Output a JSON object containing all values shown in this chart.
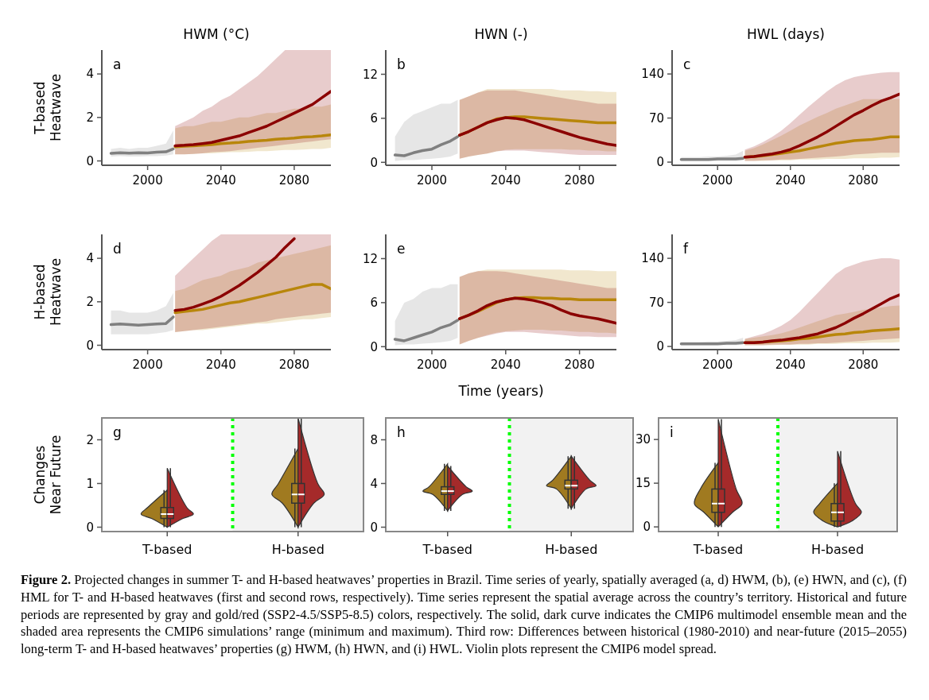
{
  "chart_data": [
    {
      "type": "line",
      "title": "HWM (°C)",
      "ylabel": "T-based Heatwave",
      "annotations": [
        "a"
      ],
      "xlim": [
        1975,
        2100
      ],
      "xticks": [
        2000,
        2040,
        2080
      ],
      "ylim": [
        -0.2,
        5.1
      ],
      "yticks": [
        0,
        2,
        4
      ],
      "series": [
        {
          "color": "#808080",
          "x": [
            1980,
            1985,
            1990,
            1995,
            2000,
            2005,
            2010,
            2014
          ],
          "values": [
            0.35,
            0.38,
            0.36,
            0.38,
            0.37,
            0.4,
            0.42,
            0.55
          ],
          "lower": [
            0.2,
            0.22,
            0.2,
            0.2,
            0.22,
            0.22,
            0.25,
            0.3
          ],
          "upper": [
            0.55,
            0.6,
            0.55,
            0.6,
            0.6,
            0.7,
            0.8,
            1.4
          ]
        },
        {
          "color": "#b8860b",
          "x": [
            2015,
            2020,
            2025,
            2030,
            2035,
            2040,
            2045,
            2050,
            2055,
            2060,
            2065,
            2070,
            2075,
            2080,
            2085,
            2090,
            2095,
            2100
          ],
          "values": [
            0.65,
            0.68,
            0.7,
            0.72,
            0.75,
            0.8,
            0.82,
            0.85,
            0.9,
            0.92,
            0.95,
            1.0,
            1.02,
            1.05,
            1.1,
            1.12,
            1.15,
            1.2
          ],
          "lower": [
            0.3,
            0.3,
            0.32,
            0.35,
            0.35,
            0.38,
            0.4,
            0.4,
            0.42,
            0.45,
            0.45,
            0.48,
            0.5,
            0.5,
            0.52,
            0.55,
            0.55,
            0.6
          ],
          "upper": [
            1.5,
            1.6,
            1.6,
            1.7,
            1.8,
            1.8,
            1.9,
            2.0,
            2.0,
            2.1,
            2.2,
            2.2,
            2.3,
            2.4,
            2.4,
            2.5,
            2.5,
            2.6
          ]
        },
        {
          "color": "#8b0000",
          "x": [
            2015,
            2020,
            2025,
            2030,
            2035,
            2040,
            2045,
            2050,
            2055,
            2060,
            2065,
            2070,
            2075,
            2080,
            2085,
            2090,
            2095,
            2100
          ],
          "values": [
            0.7,
            0.72,
            0.75,
            0.8,
            0.85,
            0.95,
            1.05,
            1.15,
            1.3,
            1.45,
            1.6,
            1.8,
            2.0,
            2.2,
            2.4,
            2.6,
            2.9,
            3.2
          ],
          "lower": [
            0.3,
            0.3,
            0.32,
            0.35,
            0.4,
            0.42,
            0.45,
            0.5,
            0.55,
            0.6,
            0.65,
            0.7,
            0.75,
            0.8,
            0.85,
            0.9,
            0.95,
            1.0
          ],
          "upper": [
            1.6,
            1.8,
            2.0,
            2.3,
            2.5,
            2.8,
            3.0,
            3.3,
            3.6,
            3.9,
            4.3,
            4.7,
            5.1,
            5.1,
            5.1,
            5.1,
            5.1,
            5.1
          ]
        }
      ]
    },
    {
      "type": "line",
      "title": "HWN (-)",
      "annotations": [
        "b"
      ],
      "xlim": [
        1975,
        2100
      ],
      "xticks": [
        2000,
        2040,
        2080
      ],
      "ylim": [
        -0.4,
        15.3
      ],
      "yticks": [
        0,
        6,
        12
      ],
      "series": [
        {
          "color": "#808080",
          "x": [
            1980,
            1985,
            1990,
            1995,
            2000,
            2005,
            2010,
            2014
          ],
          "values": [
            1.0,
            0.9,
            1.3,
            1.6,
            1.8,
            2.4,
            2.9,
            3.5
          ],
          "lower": [
            0.2,
            0.3,
            0.3,
            0.4,
            0.5,
            0.6,
            0.8,
            1.2
          ],
          "upper": [
            3.5,
            5.5,
            6.5,
            7,
            7.5,
            8,
            8,
            8.5
          ]
        },
        {
          "color": "#b8860b",
          "x": [
            2015,
            2020,
            2025,
            2030,
            2035,
            2040,
            2045,
            2050,
            2055,
            2060,
            2065,
            2070,
            2075,
            2080,
            2085,
            2090,
            2095,
            2100
          ],
          "values": [
            3.7,
            4.2,
            4.8,
            5.4,
            5.9,
            6.1,
            6.2,
            6.2,
            6.1,
            6.0,
            5.9,
            5.8,
            5.7,
            5.6,
            5.5,
            5.4,
            5.4,
            5.4
          ],
          "lower": [
            0.5,
            0.8,
            1.0,
            1.2,
            1.5,
            1.7,
            1.8,
            1.8,
            1.8,
            1.8,
            1.8,
            1.8,
            1.7,
            1.7,
            1.6,
            1.6,
            1.5,
            1.5
          ],
          "upper": [
            8.5,
            9,
            9.5,
            10,
            10,
            10,
            10,
            10,
            10,
            10,
            10,
            9.8,
            9.8,
            9.8,
            9.7,
            9.7,
            9.6,
            9.6
          ]
        },
        {
          "color": "#8b0000",
          "x": [
            2015,
            2020,
            2025,
            2030,
            2035,
            2040,
            2045,
            2050,
            2055,
            2060,
            2065,
            2070,
            2075,
            2080,
            2085,
            2090,
            2095,
            2100
          ],
          "values": [
            3.7,
            4.2,
            4.8,
            5.4,
            5.8,
            6.1,
            6.0,
            5.8,
            5.4,
            5.0,
            4.6,
            4.2,
            3.8,
            3.4,
            3.1,
            2.8,
            2.5,
            2.3
          ],
          "lower": [
            0.5,
            0.8,
            1.0,
            1.2,
            1.5,
            1.6,
            1.6,
            1.6,
            1.5,
            1.4,
            1.3,
            1.2,
            1.1,
            1.0,
            1.0,
            1.0,
            1.0,
            1.0
          ],
          "upper": [
            8.5,
            9,
            9.5,
            9.8,
            9.8,
            9.8,
            9.8,
            9.6,
            9.4,
            9.2,
            9,
            8.8,
            8.6,
            8.4,
            8.2,
            8,
            8,
            8
          ]
        }
      ]
    },
    {
      "type": "line",
      "title": "HWL (days)",
      "annotations": [
        "c"
      ],
      "xlim": [
        1975,
        2100
      ],
      "xticks": [
        2000,
        2040,
        2080
      ],
      "ylim": [
        -5,
        178
      ],
      "yticks": [
        0,
        70,
        140
      ],
      "series": [
        {
          "color": "#808080",
          "x": [
            1980,
            1985,
            1990,
            1995,
            2000,
            2005,
            2010,
            2014
          ],
          "values": [
            4,
            4,
            4,
            4,
            5,
            5,
            5,
            6
          ],
          "lower": [
            2,
            2,
            2,
            2,
            2,
            2,
            2,
            3
          ],
          "upper": [
            8,
            8,
            8,
            9,
            9,
            10,
            12,
            18
          ]
        },
        {
          "color": "#b8860b",
          "x": [
            2015,
            2020,
            2025,
            2030,
            2035,
            2040,
            2045,
            2050,
            2055,
            2060,
            2065,
            2070,
            2075,
            2080,
            2085,
            2090,
            2095,
            2100
          ],
          "values": [
            8,
            9,
            10,
            12,
            14,
            16,
            18,
            21,
            24,
            27,
            30,
            32,
            34,
            35,
            36,
            38,
            40,
            40
          ],
          "lower": [
            2,
            2,
            2,
            3,
            3,
            3,
            4,
            4,
            4,
            5,
            5,
            5,
            6,
            6,
            6,
            7,
            7,
            8
          ],
          "upper": [
            18,
            22,
            28,
            35,
            42,
            50,
            58,
            65,
            72,
            78,
            85,
            90,
            95,
            100,
            100,
            100,
            100,
            100
          ]
        },
        {
          "color": "#8b0000",
          "x": [
            2015,
            2020,
            2025,
            2030,
            2035,
            2040,
            2045,
            2050,
            2055,
            2060,
            2065,
            2070,
            2075,
            2080,
            2085,
            2090,
            2095,
            2100
          ],
          "values": [
            8,
            9,
            11,
            13,
            16,
            20,
            26,
            33,
            40,
            48,
            57,
            66,
            75,
            82,
            90,
            97,
            102,
            108
          ],
          "lower": [
            2,
            2,
            3,
            3,
            4,
            4,
            5,
            6,
            7,
            8,
            9,
            10,
            12,
            13,
            14,
            15,
            15,
            15
          ],
          "upper": [
            20,
            25,
            32,
            40,
            50,
            62,
            75,
            88,
            100,
            112,
            122,
            130,
            135,
            138,
            140,
            142,
            143,
            143
          ]
        }
      ]
    },
    {
      "type": "line",
      "ylabel": "H-based Heatwave",
      "annotations": [
        "d"
      ],
      "xlim": [
        1975,
        2100
      ],
      "xticks": [
        2000,
        2040,
        2080
      ],
      "ylim": [
        -0.2,
        5.1
      ],
      "yticks": [
        0,
        2,
        4
      ],
      "series": [
        {
          "color": "#808080",
          "x": [
            1980,
            1985,
            1990,
            1995,
            2000,
            2005,
            2010,
            2014
          ],
          "values": [
            0.95,
            0.98,
            0.95,
            0.92,
            0.95,
            0.98,
            1.0,
            1.3
          ],
          "lower": [
            0.5,
            0.5,
            0.5,
            0.5,
            0.5,
            0.55,
            0.6,
            0.7
          ],
          "upper": [
            1.6,
            1.6,
            1.5,
            1.5,
            1.5,
            1.6,
            1.8,
            2.4
          ]
        },
        {
          "color": "#b8860b",
          "x": [
            2015,
            2020,
            2025,
            2030,
            2035,
            2040,
            2045,
            2050,
            2055,
            2060,
            2065,
            2070,
            2075,
            2080,
            2085,
            2090,
            2095,
            2100
          ],
          "values": [
            1.5,
            1.55,
            1.6,
            1.65,
            1.75,
            1.85,
            1.95,
            2.0,
            2.1,
            2.2,
            2.3,
            2.4,
            2.5,
            2.6,
            2.7,
            2.8,
            2.8,
            2.6
          ],
          "lower": [
            0.6,
            0.65,
            0.7,
            0.7,
            0.75,
            0.8,
            0.85,
            0.9,
            0.95,
            1.0,
            1.0,
            1.05,
            1.1,
            1.15,
            1.2,
            1.2,
            1.25,
            1.3
          ],
          "upper": [
            2.5,
            2.6,
            2.8,
            3.0,
            3.1,
            3.2,
            3.4,
            3.5,
            3.6,
            3.8,
            3.9,
            4.0,
            4.1,
            4.2,
            4.3,
            4.4,
            4.5,
            4.6
          ]
        },
        {
          "color": "#8b0000",
          "x": [
            2015,
            2020,
            2025,
            2030,
            2035,
            2040,
            2045,
            2050,
            2055,
            2060,
            2065,
            2070,
            2075,
            2080,
            2085,
            2090,
            2095,
            2100
          ],
          "values": [
            1.6,
            1.65,
            1.75,
            1.9,
            2.05,
            2.25,
            2.5,
            2.75,
            3.05,
            3.35,
            3.7,
            4.05,
            4.5,
            4.9,
            null,
            null,
            null,
            null
          ],
          "lower": [
            0.6,
            0.65,
            0.7,
            0.75,
            0.8,
            0.85,
            0.9,
            0.95,
            1.0,
            1.05,
            1.1,
            1.2,
            1.25,
            1.3,
            1.35,
            1.4,
            1.45,
            1.5
          ],
          "upper": [
            3.2,
            3.6,
            4.0,
            4.4,
            4.8,
            5.1,
            5.1,
            5.1,
            5.1,
            5.1,
            5.1,
            5.1,
            5.1,
            5.1,
            5.1,
            5.1,
            5.1,
            5.1
          ]
        }
      ]
    },
    {
      "type": "line",
      "xlabel": "Time (years)",
      "annotations": [
        "e"
      ],
      "xlim": [
        1975,
        2100
      ],
      "xticks": [
        2000,
        2040,
        2080
      ],
      "ylim": [
        -0.4,
        15.3
      ],
      "yticks": [
        0,
        6,
        12
      ],
      "series": [
        {
          "color": "#808080",
          "x": [
            1980,
            1985,
            1990,
            1995,
            2000,
            2005,
            2010,
            2014
          ],
          "values": [
            1.0,
            0.8,
            1.2,
            1.6,
            2.0,
            2.6,
            3.0,
            3.6
          ],
          "lower": [
            0.2,
            0.3,
            0.3,
            0.4,
            0.5,
            0.6,
            0.8,
            1.2
          ],
          "upper": [
            3.5,
            6,
            6.5,
            7.5,
            8,
            8,
            8.5,
            8.5
          ]
        },
        {
          "color": "#b8860b",
          "x": [
            2015,
            2020,
            2025,
            2030,
            2035,
            2040,
            2045,
            2050,
            2055,
            2060,
            2065,
            2070,
            2075,
            2080,
            2085,
            2090,
            2095,
            2100
          ],
          "values": [
            3.8,
            4.3,
            4.8,
            5.4,
            6.0,
            6.4,
            6.6,
            6.7,
            6.7,
            6.6,
            6.6,
            6.5,
            6.5,
            6.4,
            6.4,
            6.4,
            6.4,
            6.4
          ],
          "lower": [
            0.3,
            0.8,
            1.2,
            1.6,
            1.9,
            2.1,
            2.2,
            2.3,
            2.3,
            2.3,
            2.2,
            2.2,
            2.1,
            2.0,
            2.0,
            1.9,
            1.9,
            1.8
          ],
          "upper": [
            9.5,
            10,
            10.3,
            10.5,
            10.5,
            10.5,
            10.5,
            10.5,
            10.5,
            10.5,
            10.5,
            10.5,
            10.4,
            10.4,
            10.4,
            10.3,
            10.3,
            10.3
          ]
        },
        {
          "color": "#8b0000",
          "x": [
            2015,
            2020,
            2025,
            2030,
            2035,
            2040,
            2045,
            2050,
            2055,
            2060,
            2065,
            2070,
            2075,
            2080,
            2085,
            2090,
            2095,
            2100
          ],
          "values": [
            3.8,
            4.3,
            4.9,
            5.6,
            6.1,
            6.4,
            6.6,
            6.5,
            6.3,
            6.0,
            5.6,
            5.0,
            4.5,
            4.2,
            4.0,
            3.8,
            3.5,
            3.2
          ],
          "lower": [
            0.3,
            0.8,
            1.2,
            1.5,
            1.8,
            2.0,
            2.0,
            2.0,
            1.9,
            1.8,
            1.7,
            1.6,
            1.5,
            1.4,
            1.4,
            1.3,
            1.3,
            1.3
          ],
          "upper": [
            9.5,
            10,
            10.3,
            10.3,
            10.3,
            10.2,
            10,
            9.8,
            9.6,
            9.4,
            9.2,
            9,
            8.8,
            8.6,
            8.4,
            8.2,
            8,
            8
          ]
        }
      ]
    },
    {
      "type": "line",
      "annotations": [
        "f"
      ],
      "xlim": [
        1975,
        2100
      ],
      "xticks": [
        2000,
        2040,
        2080
      ],
      "ylim": [
        -5,
        178
      ],
      "yticks": [
        0,
        70,
        140
      ],
      "series": [
        {
          "color": "#808080",
          "x": [
            1980,
            1985,
            1990,
            1995,
            2000,
            2005,
            2010,
            2014
          ],
          "values": [
            4,
            4,
            4,
            4,
            4,
            5,
            5,
            6
          ],
          "lower": [
            2,
            2,
            2,
            2,
            2,
            2,
            2,
            3
          ],
          "upper": [
            7,
            7,
            7,
            8,
            8,
            9,
            10,
            14
          ]
        },
        {
          "color": "#b8860b",
          "x": [
            2015,
            2020,
            2025,
            2030,
            2035,
            2040,
            2045,
            2050,
            2055,
            2060,
            2065,
            2070,
            2075,
            2080,
            2085,
            2090,
            2095,
            2100
          ],
          "values": [
            6,
            6,
            7,
            8,
            9,
            10,
            12,
            13,
            15,
            17,
            19,
            20,
            22,
            23,
            25,
            26,
            27,
            28
          ],
          "lower": [
            2,
            2,
            2,
            2,
            3,
            3,
            3,
            3,
            4,
            4,
            4,
            5,
            5,
            5,
            6,
            6,
            6,
            7
          ],
          "upper": [
            12,
            14,
            16,
            18,
            21,
            25,
            30,
            35,
            40,
            45,
            50,
            52,
            55,
            58,
            60,
            62,
            64,
            65
          ]
        },
        {
          "color": "#8b0000",
          "x": [
            2015,
            2020,
            2025,
            2030,
            2035,
            2040,
            2045,
            2050,
            2055,
            2060,
            2065,
            2070,
            2075,
            2080,
            2085,
            2090,
            2095,
            2100
          ],
          "values": [
            6,
            6,
            7,
            9,
            10,
            12,
            14,
            17,
            20,
            25,
            30,
            37,
            45,
            52,
            60,
            68,
            76,
            82
          ],
          "lower": [
            2,
            2,
            2,
            3,
            3,
            3,
            4,
            4,
            5,
            5,
            6,
            7,
            8,
            9,
            10,
            11,
            12,
            13
          ],
          "upper": [
            12,
            16,
            20,
            26,
            33,
            42,
            55,
            70,
            85,
            100,
            115,
            125,
            130,
            135,
            138,
            140,
            140,
            138
          ]
        }
      ]
    },
    {
      "type": "box",
      "ylabel": "Changes Near Future",
      "annotations": [
        "g"
      ],
      "categories": [
        "T-based",
        "H-based"
      ],
      "ylim": [
        -0.1,
        2.5
      ],
      "yticks": [
        0,
        1,
        2
      ],
      "series": [
        {
          "color": "#a07a20",
          "boxes": [
            {
              "low": 0,
              "q1": 0.2,
              "median": 0.3,
              "q3": 0.45,
              "high": 0.85
            },
            {
              "low": 0,
              "q1": 0.55,
              "median": 0.75,
              "q3": 1.0,
              "high": 1.8
            }
          ]
        },
        {
          "color": "#a52a2a",
          "boxes": [
            {
              "low": 0,
              "q1": 0.2,
              "median": 0.3,
              "q3": 0.45,
              "high": 1.35
            },
            {
              "low": 0,
              "q1": 0.55,
              "median": 0.75,
              "q3": 1.0,
              "high": 2.5
            }
          ]
        }
      ]
    },
    {
      "type": "box",
      "annotations": [
        "h"
      ],
      "categories": [
        "T-based",
        "H-based"
      ],
      "ylim": [
        -0.4,
        10
      ],
      "yticks": [
        0,
        4,
        8
      ],
      "series": [
        {
          "color": "#a07a20",
          "boxes": [
            {
              "low": 1.5,
              "q1": 3.0,
              "median": 3.3,
              "q3": 3.7,
              "high": 5.8
            },
            {
              "low": 1.7,
              "q1": 3.5,
              "median": 3.8,
              "q3": 4.3,
              "high": 6.5
            }
          ]
        },
        {
          "color": "#a52a2a",
          "boxes": [
            {
              "low": 1.5,
              "q1": 3.0,
              "median": 3.3,
              "q3": 3.7,
              "high": 5.6
            },
            {
              "low": 1.7,
              "q1": 3.5,
              "median": 3.8,
              "q3": 4.3,
              "high": 6.5
            }
          ]
        }
      ]
    },
    {
      "type": "box",
      "annotations": [
        "i",
        "Figure 2.",
        "Projected changes in summer T- and H-based heatwaves’ properties in Brazil. Time series of yearly, spatially averaged (a, d) HWM, (b), (e) HWN, and (c), (f) HML for T- and H-based heatwaves (first and second rows, respectively). Time series represent the spatial average across the country’s territory. Historical and future periods are represented by gray and gold/red (SSP2-4.5/SSP5-8.5) colors, respectively. The solid, dark curve indicates the CMIP6 multimodel ensemble mean and the shaded area represents the CMIP6 simulations’ range (minimum and maximum). Third row: Differences between historical (1980-2010) and near-future (2015–2055) long-term T- and H-based heatwaves’ properties (g) HWM, (h) HWN, and (i) HWL. Violin plots represent the CMIP6 model spread."
      ],
      "categories": [
        "T-based",
        "H-based"
      ],
      "ylim": [
        -1.6,
        37.4
      ],
      "yticks": [
        0,
        15,
        30
      ],
      "series": [
        {
          "color": "#a07a20",
          "boxes": [
            {
              "low": 0,
              "q1": 5,
              "median": 8,
              "q3": 13,
              "high": 22
            },
            {
              "low": 0,
              "q1": 2,
              "median": 5,
              "q3": 8,
              "high": 15
            }
          ]
        },
        {
          "color": "#a52a2a",
          "boxes": [
            {
              "low": 0,
              "q1": 5,
              "median": 8,
              "q3": 13,
              "high": 37
            },
            {
              "low": 0,
              "q1": 2,
              "median": 5,
              "q3": 8,
              "high": 26
            }
          ]
        }
      ]
    }
  ]
}
